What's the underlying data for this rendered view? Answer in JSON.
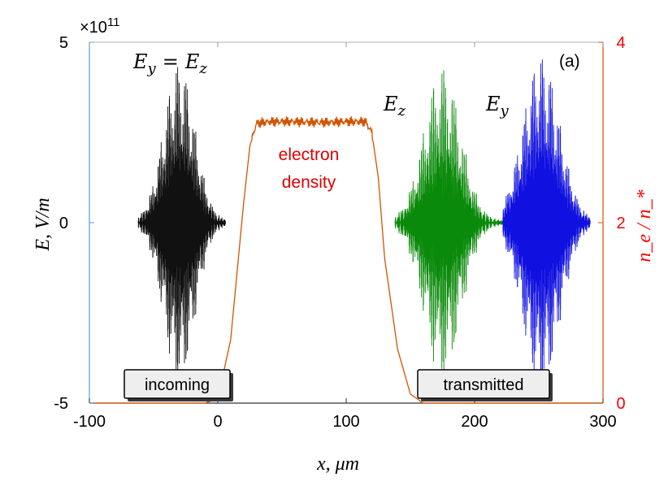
{
  "chart_data": {
    "type": "line",
    "title": "",
    "xlabel": "x, μm",
    "ylabel_left": "E, V/m",
    "ylabel_right": "n_e / n_*",
    "y_exponent_label": "×10",
    "y_exponent_power": "11",
    "xlim": [
      -100,
      300
    ],
    "ylim_left": [
      -5,
      5
    ],
    "ylim_right": [
      0,
      4
    ],
    "x_ticks": [
      -100,
      0,
      100,
      200,
      300
    ],
    "x_tick_labels": [
      "-100",
      "0",
      "100",
      "200",
      "300"
    ],
    "y_left_ticks": [
      -5,
      0,
      5
    ],
    "y_left_tick_labels": [
      "-5",
      "0",
      "5"
    ],
    "y_right_ticks": [
      0,
      2,
      4
    ],
    "y_right_tick_labels": [
      "0",
      "2",
      "4"
    ],
    "panel_label": "(a)",
    "series": [
      {
        "name": "incoming (E_y = E_z)",
        "axis": "left",
        "kind": "wave_packet",
        "center": -30,
        "width": 17,
        "amplitude": 4.4,
        "x_range": [
          -62,
          6
        ],
        "color": "#111111"
      },
      {
        "name": "transmitted E_z",
        "axis": "left",
        "kind": "wave_packet",
        "center": 175,
        "width": 20,
        "amplitude": 4.3,
        "x_range": [
          138,
          222
        ],
        "color": "#0a8a0a"
      },
      {
        "name": "transmitted E_y",
        "axis": "left",
        "kind": "wave_packet",
        "center": 252,
        "width": 20,
        "amplitude": 4.6,
        "x_range": [
          222,
          290
        ],
        "color": "#1010e0"
      },
      {
        "name": "electron density",
        "axis": "right",
        "kind": "profile",
        "color": "#d35400",
        "x": [
          -100,
          -10,
          0,
          10,
          20,
          25,
          30,
          40,
          60,
          80,
          100,
          115,
          120,
          125,
          130,
          140,
          150,
          160,
          300
        ],
        "y": [
          0,
          0,
          0.05,
          0.7,
          2.2,
          2.85,
          3.1,
          3.12,
          3.12,
          3.11,
          3.12,
          3.12,
          3.0,
          2.5,
          1.6,
          0.6,
          0.1,
          0,
          0
        ]
      }
    ],
    "annotations": {
      "eq_label": {
        "left": "E",
        "left_sub": "y",
        "eq": "=",
        "right": "E",
        "right_sub": "z"
      },
      "ez_label": {
        "base": "E",
        "sub": "z"
      },
      "ey_label": {
        "base": "E",
        "sub": "y"
      },
      "density_line1": "electron",
      "density_line2": "density",
      "incoming_box": "incoming",
      "transmitted_box": "transmitted"
    },
    "colors": {
      "left_axis": "#5b9bd5",
      "right_axis": "#d35400",
      "right_label": "#ff0000",
      "density_text": "#dd0000"
    }
  }
}
